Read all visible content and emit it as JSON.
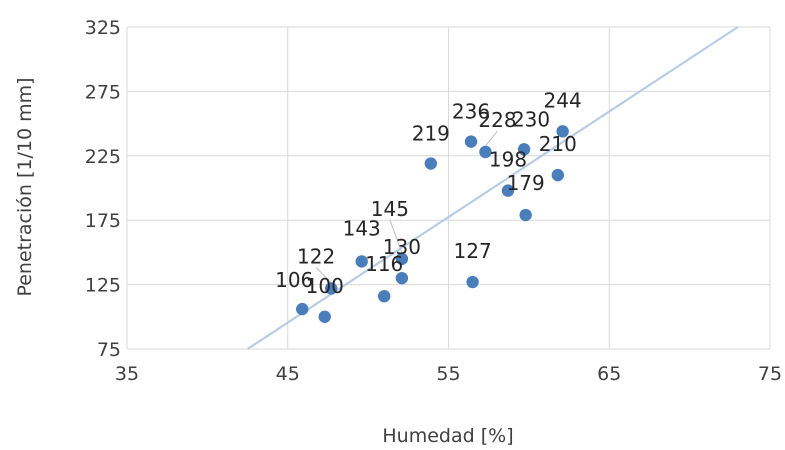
{
  "chart_data": {
    "type": "scatter",
    "title": "",
    "xlabel": "Humedad  [%]",
    "ylabel": "Penetración [1/10 mm]",
    "xlim": [
      35,
      75
    ],
    "ylim": [
      75,
      325
    ],
    "xticks": [
      "35",
      "45",
      "55",
      "65",
      "75"
    ],
    "yticks": [
      "75",
      "125",
      "175",
      "225",
      "275",
      "325"
    ],
    "grid": true,
    "legend": "none",
    "point_color": "#4a7ebb",
    "trendline_color": "#b8cce4",
    "points": [
      {
        "x": 45.9,
        "y": 106,
        "label": "106"
      },
      {
        "x": 47.3,
        "y": 100,
        "label": "100"
      },
      {
        "x": 47.7,
        "y": 122,
        "label": "122"
      },
      {
        "x": 49.6,
        "y": 143,
        "label": "143"
      },
      {
        "x": 51.0,
        "y": 116,
        "label": "116"
      },
      {
        "x": 52.1,
        "y": 130,
        "label": "130"
      },
      {
        "x": 52.1,
        "y": 145,
        "label": "145"
      },
      {
        "x": 53.9,
        "y": 219,
        "label": "219"
      },
      {
        "x": 56.5,
        "y": 127,
        "label": "127"
      },
      {
        "x": 56.4,
        "y": 236,
        "label": "236"
      },
      {
        "x": 57.3,
        "y": 228,
        "label": "228"
      },
      {
        "x": 58.7,
        "y": 198,
        "label": "198"
      },
      {
        "x": 59.7,
        "y": 230,
        "label": "230"
      },
      {
        "x": 59.8,
        "y": 179,
        "label": "179"
      },
      {
        "x": 61.8,
        "y": 210,
        "label": "210"
      },
      {
        "x": 62.1,
        "y": 244,
        "label": "244"
      }
    ],
    "trendline": {
      "x": [
        42.5,
        73.0
      ],
      "y": [
        75,
        325
      ]
    }
  }
}
